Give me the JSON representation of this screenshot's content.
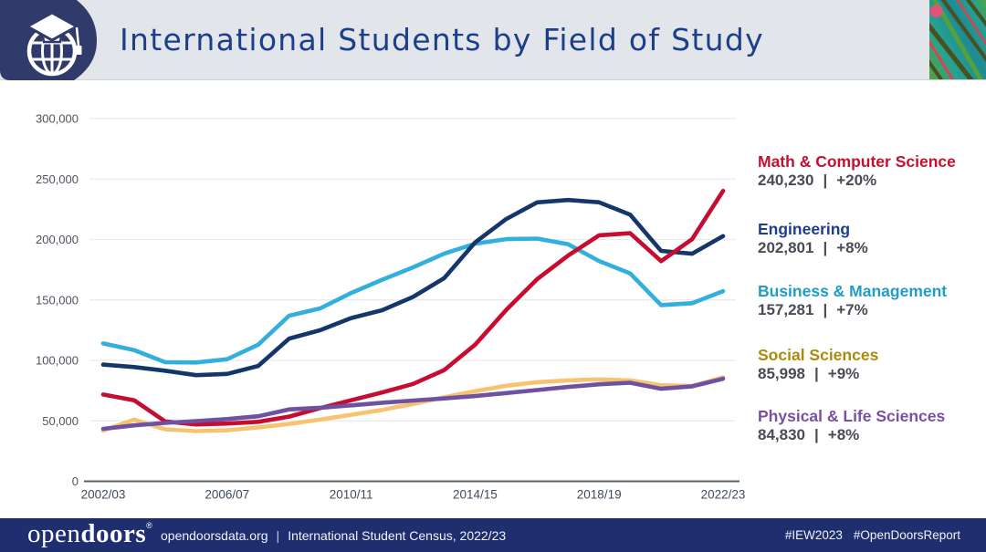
{
  "header": {
    "title": "International Students by Field of Study",
    "art_colors": [
      "#26a391",
      "#55a23c",
      "#494f1e",
      "#d64355",
      "#1f8a93",
      "#e0527a"
    ]
  },
  "chart_data": {
    "type": "line",
    "title": "International Students by Field of Study",
    "x": [
      "2002/03",
      "2003/04",
      "2004/05",
      "2005/06",
      "2006/07",
      "2007/08",
      "2008/09",
      "2009/10",
      "2010/11",
      "2011/12",
      "2012/13",
      "2013/14",
      "2014/15",
      "2015/16",
      "2016/17",
      "2017/18",
      "2018/19",
      "2019/20",
      "2020/21",
      "2021/22",
      "2022/23"
    ],
    "x_ticks_shown": [
      "2002/03",
      "2006/07",
      "2010/11",
      "2014/15",
      "2018/19",
      "2022/23"
    ],
    "y_ticks": [
      "0",
      "50,000",
      "100,000",
      "150,000",
      "200,000",
      "250,000",
      "300,000"
    ],
    "ylim": [
      0,
      300000
    ],
    "grid": "horizontal",
    "legend_position": "right",
    "series": [
      {
        "name": "Math & Computer Science",
        "color": "#C60C30",
        "values": [
          71800,
          67000,
          49500,
          47000,
          47800,
          49200,
          53500,
          60500,
          67000,
          73500,
          80500,
          92000,
          112950,
          141651,
          167180,
          186680,
          203461,
          205207,
          182120,
          200301,
          240230
        ]
      },
      {
        "name": "Engineering",
        "color": "#14366B",
        "values": [
          96500,
          94500,
          91500,
          87800,
          88800,
          95400,
          118000,
          125000,
          135000,
          141500,
          152500,
          168000,
          197556,
          216932,
          230711,
          232710,
          230780,
          220542,
          190590,
          188193,
          202801
        ]
      },
      {
        "name": "Business & Management",
        "color": "#33AFDE",
        "values": [
          114000,
          108500,
          98500,
          98300,
          101000,
          113000,
          137000,
          143000,
          155800,
          166700,
          177000,
          188300,
          196500,
          200312,
          200754,
          196054,
          182170,
          172000,
          145700,
          147293,
          157281
        ]
      },
      {
        "name": "Social Sciences",
        "color": "#F8C371",
        "values": [
          42000,
          51000,
          43000,
          41500,
          42200,
          44500,
          47500,
          51000,
          55000,
          59000,
          64000,
          69500,
          74500,
          79000,
          82000,
          83500,
          84320,
          83500,
          79500,
          78900,
          85998
        ]
      },
      {
        "name": "Physical & Life Sciences",
        "color": "#6F51A1",
        "values": [
          43400,
          46300,
          48300,
          49800,
          51500,
          53800,
          59500,
          60800,
          62800,
          65000,
          66800,
          68500,
          70500,
          73000,
          75500,
          78000,
          80200,
          81500,
          76500,
          78550,
          84830
        ]
      }
    ]
  },
  "legend": {
    "separator": "|",
    "items": [
      {
        "label": "Math & Computer Science",
        "color": "#C8102E",
        "value": "240,230",
        "pct": "+20%"
      },
      {
        "label": "Engineering",
        "color": "#1d3d91",
        "value": "202,801",
        "pct": "+8%"
      },
      {
        "label": "Business & Management",
        "color": "#1e9dc9",
        "value": "157,281",
        "pct": "+7%"
      },
      {
        "label": "Social Sciences",
        "color": "#AE8A0B",
        "value": "85,998",
        "pct": "+9%"
      },
      {
        "label": "Physical & Life Sciences",
        "color": "#7851A1",
        "value": "84,830",
        "pct": "+8%"
      }
    ]
  },
  "footer": {
    "logo_open": "open",
    "logo_doors": "doors",
    "logo_reg": "®",
    "site": "opendoorsdata.org",
    "sep": "|",
    "census": "International Student Census, 2022/23",
    "tag1": "#IEW2023",
    "tag2": "#OpenDoorsReport"
  }
}
